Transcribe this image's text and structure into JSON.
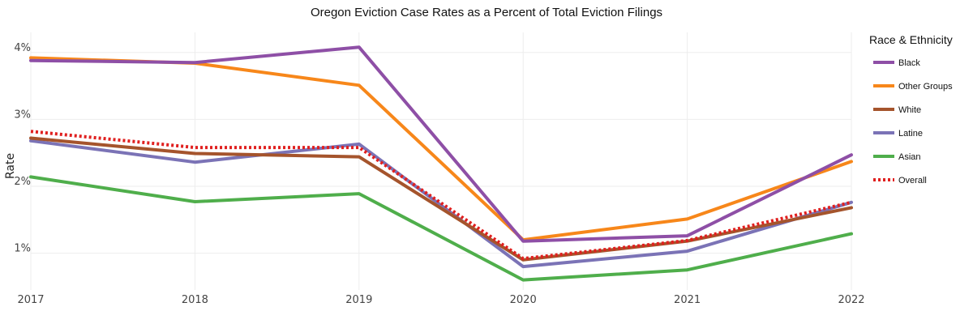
{
  "chart_data": {
    "type": "line",
    "title": "Oregon Eviction Case Rates as a Percent of Total Eviction Filings",
    "xlabel": "",
    "ylabel": "Rate",
    "x": [
      "2017",
      "2018",
      "2019",
      "2020",
      "2021",
      "2022"
    ],
    "y_ticks": [
      "1%",
      "2%",
      "3%",
      "4%"
    ],
    "y_tick_values": [
      1,
      2,
      3,
      4
    ],
    "ylim": [
      0.45,
      4.3
    ],
    "grid": true,
    "legend": {
      "title": "Race & Ethnicity",
      "position": "right"
    },
    "series": [
      {
        "name": "Black",
        "color": "#8e4fa6",
        "dash": "solid",
        "values": [
          3.88,
          3.85,
          4.08,
          1.18,
          1.26,
          2.47
        ]
      },
      {
        "name": "Other Groups",
        "color": "#f7871a",
        "dash": "solid",
        "values": [
          3.92,
          3.84,
          3.51,
          1.2,
          1.51,
          2.37
        ]
      },
      {
        "name": "White",
        "color": "#a5542c",
        "dash": "solid",
        "values": [
          2.72,
          2.49,
          2.44,
          0.9,
          1.18,
          1.68
        ]
      },
      {
        "name": "Latine",
        "color": "#7b73b6",
        "dash": "solid",
        "values": [
          2.68,
          2.36,
          2.63,
          0.8,
          1.03,
          1.76
        ]
      },
      {
        "name": "Asian",
        "color": "#4fae4b",
        "dash": "solid",
        "values": [
          2.14,
          1.77,
          1.89,
          0.6,
          0.75,
          1.29
        ]
      },
      {
        "name": "Overall",
        "color": "#e0201f",
        "dash": "dotted",
        "values": [
          2.82,
          2.58,
          2.58,
          0.92,
          1.19,
          1.76
        ]
      }
    ]
  }
}
